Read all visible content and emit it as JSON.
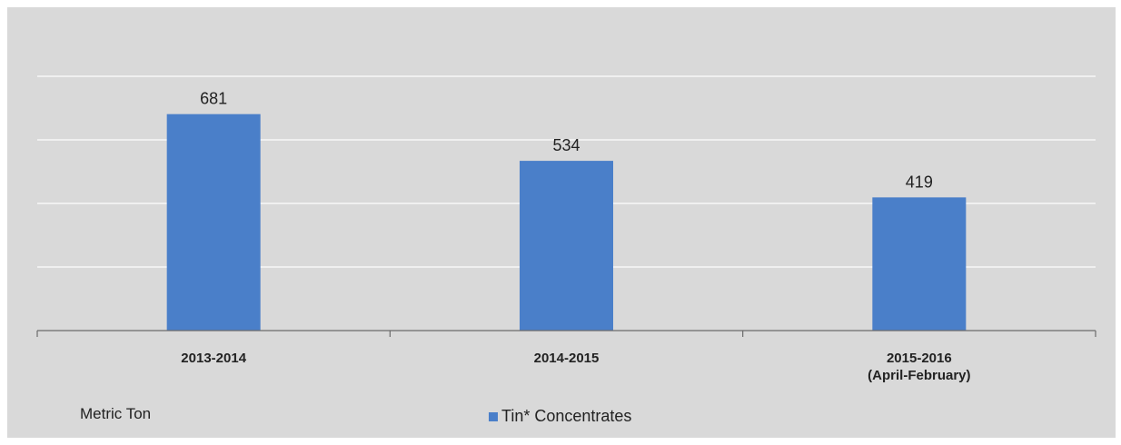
{
  "chart_data": {
    "type": "bar",
    "categories": [
      [
        "2013-2014"
      ],
      [
        "2014-2015"
      ],
      [
        "2015-2016",
        "(April-February)"
      ]
    ],
    "series": [
      {
        "name": "Tin* Concentrates",
        "values": [
          681,
          534,
          419
        ],
        "color": "#4a7fc9"
      }
    ],
    "data_labels": [
      "681",
      "534",
      "419"
    ],
    "ylim": [
      0,
      800
    ],
    "grid": true,
    "unit_label": "Metric  Ton",
    "legend_position": "bottom-center"
  },
  "colors": {
    "background": "#d9d9d9",
    "gridline": "#ffffff",
    "axis": "#6b6b6b",
    "text": "#222222"
  }
}
